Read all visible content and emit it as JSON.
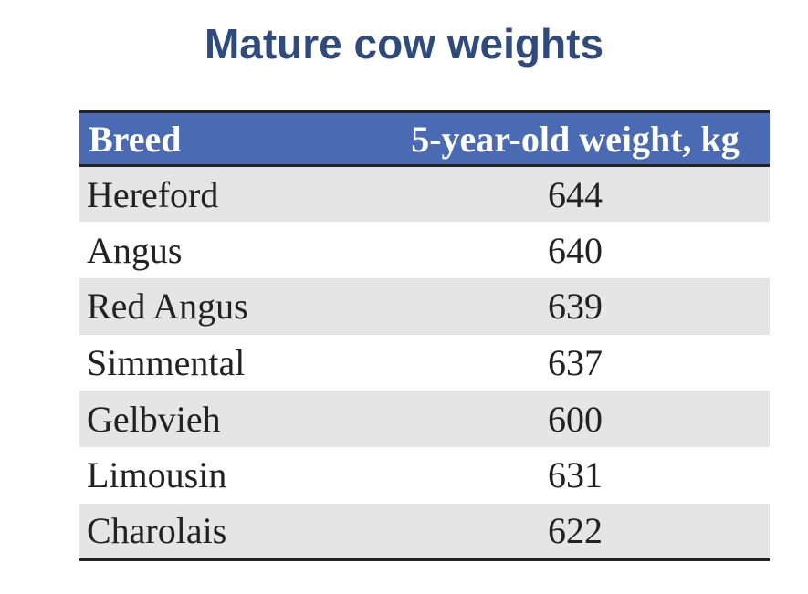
{
  "title": "Mature cow weights",
  "table": {
    "headers": {
      "breed": "Breed",
      "weight": "5-year-old weight, kg"
    },
    "rows": [
      {
        "breed": "Hereford",
        "weight": "644"
      },
      {
        "breed": "Angus",
        "weight": "640"
      },
      {
        "breed": "Red Angus",
        "weight": "639"
      },
      {
        "breed": "Simmental",
        "weight": "637"
      },
      {
        "breed": "Gelbvieh",
        "weight": "600"
      },
      {
        "breed": "Limousin",
        "weight": "631"
      },
      {
        "breed": "Charolais",
        "weight": "622"
      }
    ]
  },
  "colors": {
    "title": "#2f4a7c",
    "header_background": "#4a6ab3",
    "stripe": "#e5e5e5"
  }
}
